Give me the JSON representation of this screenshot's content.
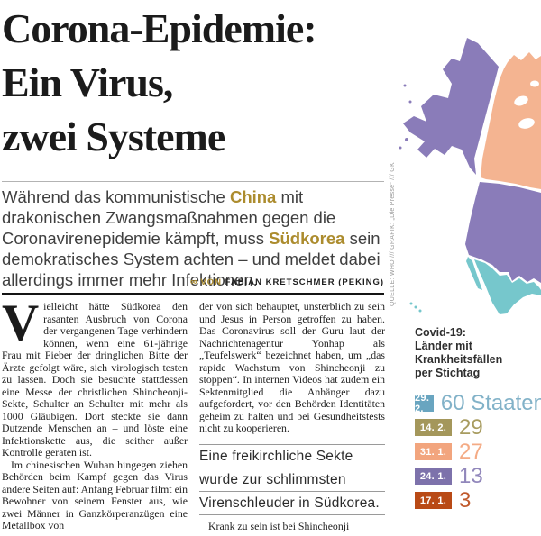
{
  "article": {
    "headline_lines": [
      "Corona-Epidemie:",
      "Ein Virus,",
      "zwei Systeme"
    ],
    "lede_segments": [
      {
        "t": "Während das kommunistische "
      },
      {
        "t": "China",
        "b": true
      },
      {
        "t": " mit drakonischen Zwangsmaßnahmen gegen die Coronavirenepidemie kämpft, muss "
      },
      {
        "t": "Südkorea",
        "b": true
      },
      {
        "t": " sein demokratisches System achten – und meldet dabei allerdings immer mehr Infektionen."
      }
    ],
    "lede_accent_color": "#ac8c2e",
    "byline": {
      "icon": "∞",
      "prefix": "VON ",
      "name": "FABIAN KRETSCHMER (PEKING)"
    },
    "col1": {
      "dropcap": "V",
      "para1": "ielleicht hätte Südkorea den rasanten Ausbruch von Corona der vergangenen Tage verhindern können, wenn eine 61-jährige Frau mit Fieber der dringlichen Bitte der Ärzte gefolgt wäre, sich virologisch testen zu lassen. Doch sie besuchte stattdessen eine Messe der christlichen Shincheonji-Sekte, Schulter an Schulter mit mehr als 1000 Gläubigen. Dort steckte sie dann Dutzende Menschen an – und löste eine Infektionskette aus, die seither außer Kontrolle geraten ist.",
      "para2": "Im chinesischen Wuhan hingegen ziehen Behörden beim Kampf gegen das Virus andere Seiten auf: Anfang Februar filmt ein Bewohner von seinem Fenster aus, wie zwei Männer in Ganzkörperanzügen eine Metallbox von"
    },
    "col2": {
      "para1": "der von sich behauptet, unsterblich zu sein und Jesus in Person getroffen zu haben. Das Coronavirus soll der Guru laut der Nachrichtenagentur Yonhap als „Teufelswerk“ bezeichnet haben, um „das rapide Wachstum von Shincheonji zu stoppen“. In internen Videos hat zudem ein Sektenmitglied die Anhänger dazu aufgefordert, vor den Behörden Identitäten geheim zu halten und bei Gesundheitstests nicht zu kooperieren.",
      "quote_lines": [
        "Eine freikirchliche Sekte",
        "wurde zur schlimmsten",
        "Virenschleuder in Südkorea."
      ],
      "para2": "Krank zu sein ist bei Shincheonji"
    }
  },
  "infographic": {
    "title_lines": [
      "Covid-19:",
      "Länder mit",
      "Krankheitsfällen",
      "per Stichtag"
    ],
    "source": "QUELLE: WHO /// GRAFIK: „Die Presse“ /// GK",
    "map_colors": {
      "alaska_usa": "#8a7cb9",
      "canada": "#f4b491",
      "mexico": "#76c7cc"
    },
    "chart_data": {
      "type": "table",
      "title": "Covid-19: Länder mit Krankheitsfällen per Stichtag",
      "categories": [
        "29. 2.",
        "14. 2.",
        "31. 1.",
        "24. 1.",
        "17. 1."
      ],
      "values": [
        60,
        29,
        27,
        13,
        3
      ],
      "unit": "Staaten"
    },
    "rows": [
      {
        "date": "29. 2.",
        "value": "60 Staaten",
        "color": "#69a5c0",
        "value_color": "#82b2c8"
      },
      {
        "date": "14. 2.",
        "value": "29",
        "color": "#a4975b",
        "value_color": "#a89c60"
      },
      {
        "date": "31. 1.",
        "value": "27",
        "color": "#f2a57e",
        "value_color": "#f4ab85"
      },
      {
        "date": "24. 1.",
        "value": "13",
        "color": "#7d72ab",
        "value_color": "#9187bb"
      },
      {
        "date": "17. 1.",
        "value": "3",
        "color": "#b94a16",
        "value_color": "#c05a2d"
      }
    ]
  }
}
